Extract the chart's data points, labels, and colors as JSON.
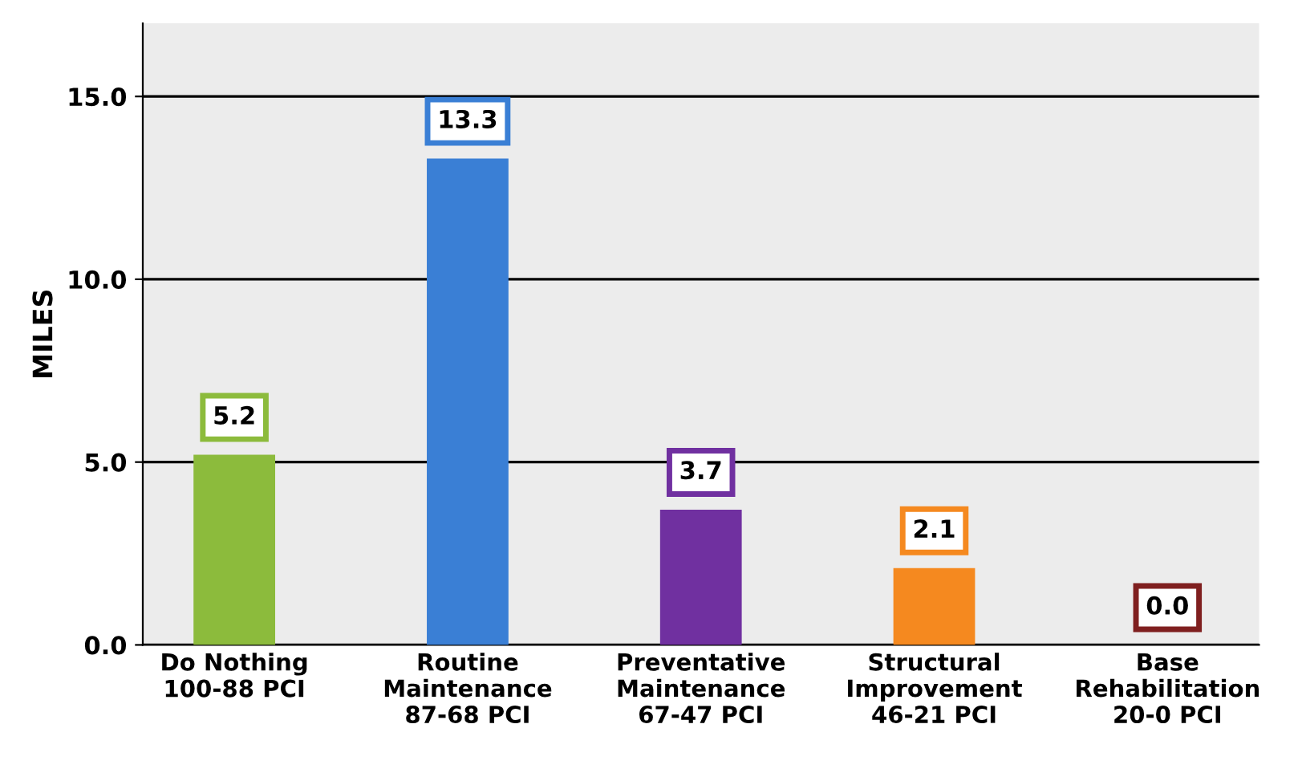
{
  "chart_data": {
    "type": "bar",
    "ylabel": "MILES",
    "categories": [
      "Do Nothing\n100-88 PCI",
      "Routine\nMaintenance\n87-68 PCI",
      "Preventative\nMaintenance\n67-47 PCI",
      "Structural\nImprovement\n46-21 PCI",
      "Base\nRehabilitation\n20-0 PCI"
    ],
    "values": [
      5.2,
      13.3,
      3.7,
      2.1,
      0.0
    ],
    "colors": [
      "#8cbb3c",
      "#3a7fd5",
      "#7030a0",
      "#f5891f",
      "#7f1f1f"
    ],
    "value_labels": [
      "5.2",
      "13.3",
      "3.7",
      "2.1",
      "0.0"
    ],
    "ylim": [
      0,
      17
    ],
    "yticks": [
      {
        "value": 0,
        "label": "0.0"
      },
      {
        "value": 5,
        "label": "5.0"
      },
      {
        "value": 10,
        "label": "10.0"
      },
      {
        "value": 15,
        "label": "15.0"
      }
    ],
    "grid": "y",
    "legend": false
  }
}
